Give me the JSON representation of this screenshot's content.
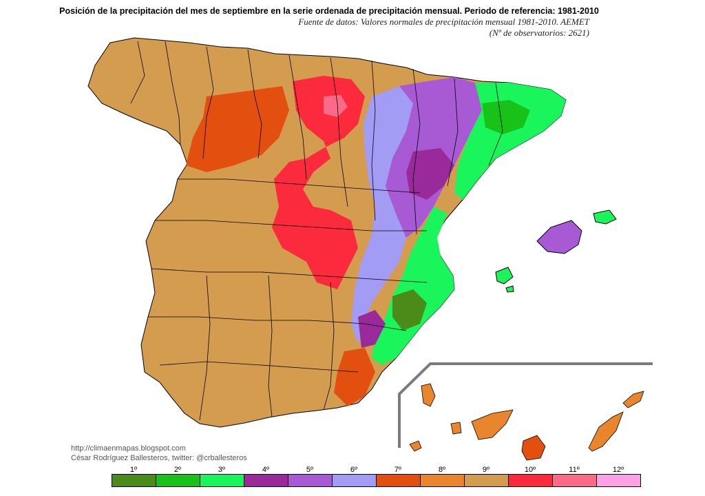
{
  "header": {
    "title": "Posición de la precipitación del mes de septiembre en la serie ordenada de precipitación mensual. Periodo de referencia: 1981-2010",
    "subtitle_line1": "Fuente de datos: Valores normales de precipitación mensual 1981-2010. AEMET",
    "subtitle_line2": "(Nº de observatorios: 2621)"
  },
  "credits": {
    "url": "http://climaenmapas.blogspot.com",
    "author": "César Rodríguez Ballesteros, twitter: @crballesteros"
  },
  "legend": {
    "items": [
      {
        "label": "1º",
        "color": "#4b8b1a"
      },
      {
        "label": "2º",
        "color": "#19c219"
      },
      {
        "label": "3º",
        "color": "#19f55a"
      },
      {
        "label": "4º",
        "color": "#9a2a9a"
      },
      {
        "label": "5º",
        "color": "#a75ad4"
      },
      {
        "label": "6º",
        "color": "#a29cf5"
      },
      {
        "label": "7º",
        "color": "#e34f0f"
      },
      {
        "label": "8º",
        "color": "#e8852d"
      },
      {
        "label": "9º",
        "color": "#d49c4e"
      },
      {
        "label": "10º",
        "color": "#fb2a3c"
      },
      {
        "label": "11º",
        "color": "#fc6a8a"
      },
      {
        "label": "12º",
        "color": "#fca1e8"
      }
    ]
  },
  "map": {
    "base_color": "#d49c4e",
    "border_color": "#000000",
    "inset_frame_color": "#7a7a7a"
  }
}
